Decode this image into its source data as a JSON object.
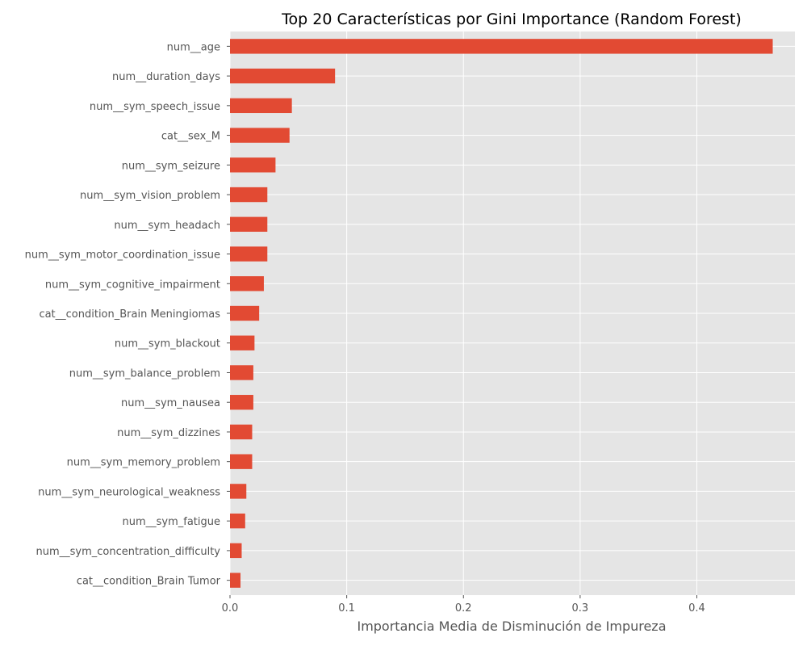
{
  "chart_data": {
    "type": "bar",
    "orientation": "horizontal",
    "title": "Top 20 Características por Gini Importance (Random Forest)",
    "xlabel": "Importancia Media de Disminución de Impureza",
    "ylabel": "",
    "xlim": [
      0,
      0.484
    ],
    "xticks": [
      0.0,
      0.1,
      0.2,
      0.3,
      0.4
    ],
    "xtick_labels": [
      "0.0",
      "0.1",
      "0.2",
      "0.3",
      "0.4"
    ],
    "grid": true,
    "bar_color": "#E24A33",
    "background_color": "#E5E5E5",
    "grid_color": "#FFFFFF",
    "categories": [
      "num__age",
      "num__duration_days",
      "num__sym_speech_issue",
      "cat__sex_M",
      "num__sym_seizure",
      "num__sym_vision_problem",
      "num__sym_headach",
      "num__sym_motor_coordination_issue",
      "num__sym_cognitive_impairment",
      "cat__condition_Brain Meningiomas",
      "num__sym_blackout",
      "num__sym_balance_problem",
      "num__sym_nausea",
      "num__sym_dizzines",
      "num__sym_memory_problem",
      "num__sym_neurological_weakness",
      "num__sym_fatigue",
      "num__sym_concentration_difficulty",
      "cat__condition_Brain Tumor"
    ],
    "values": [
      0.465,
      0.09,
      0.053,
      0.051,
      0.039,
      0.032,
      0.032,
      0.032,
      0.029,
      0.025,
      0.021,
      0.02,
      0.02,
      0.019,
      0.019,
      0.014,
      0.013,
      0.01,
      0.009
    ]
  }
}
